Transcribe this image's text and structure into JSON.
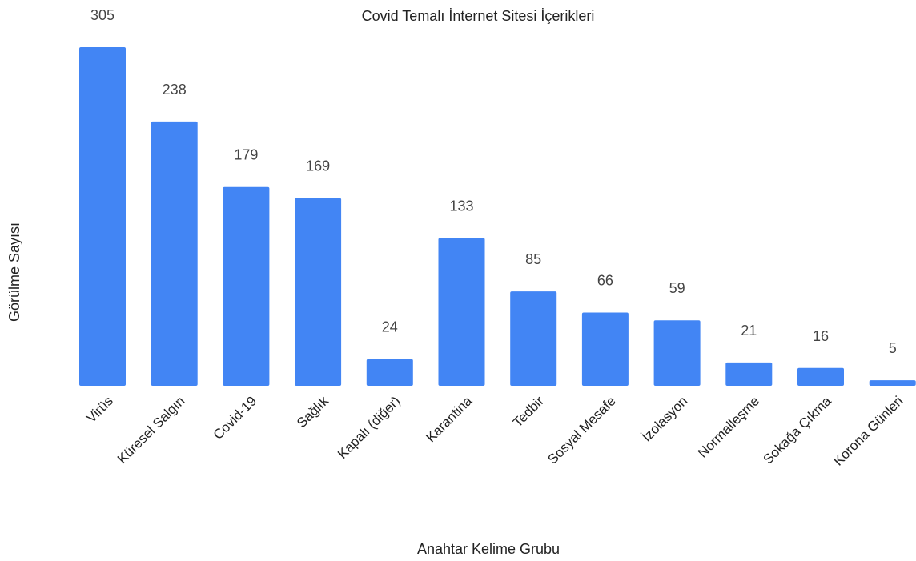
{
  "chart_data": {
    "type": "bar",
    "title": "Covid Temalı İnternet Sitesi İçerikleri",
    "xlabel": "Anahtar Kelime Grubu",
    "ylabel": "Görülme Sayısı",
    "categories": [
      "Virüs",
      "Küresel Salgın",
      "Covid-19",
      "Sağlık",
      "Kapalı (diğer)",
      "Karantina",
      "Tedbir",
      "Sosyal Mesafe",
      "İzolasyon",
      "Normalleşme",
      "Sokağa Çıkma",
      "Korona Günleri"
    ],
    "values": [
      305,
      238,
      179,
      169,
      24,
      133,
      85,
      66,
      59,
      21,
      16,
      5
    ],
    "data_labels": [
      "305",
      "238",
      "179",
      "169",
      "24",
      "133",
      "85",
      "66",
      "59",
      "21",
      "16",
      "5"
    ],
    "ylim": [
      0,
      305
    ],
    "grid": false,
    "legend": "none",
    "bar_color": "#4285F4"
  }
}
